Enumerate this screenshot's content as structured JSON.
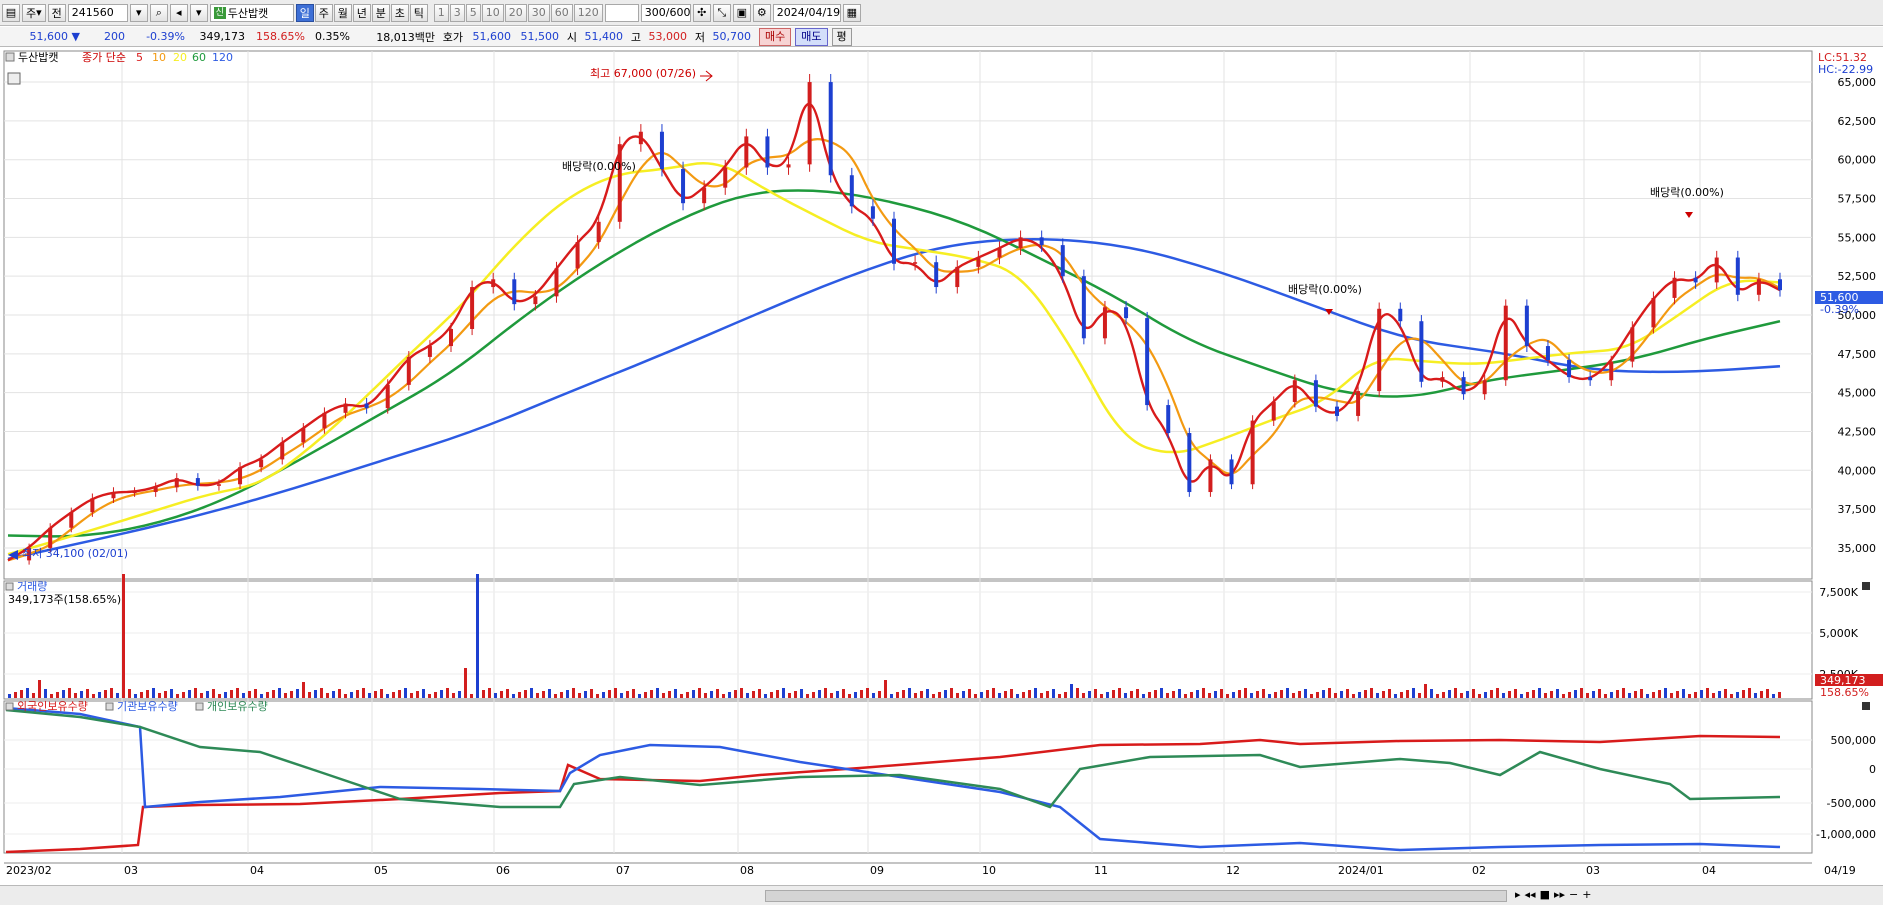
{
  "toolbar": {
    "period_label": "주",
    "mode_label": "전",
    "code": "241560",
    "stock_badge": "신",
    "stock_name": "두산밥캣",
    "timeframes": [
      "일",
      "주",
      "월",
      "년",
      "분",
      "초",
      "틱"
    ],
    "timeframe_selected": "일",
    "intervals": [
      "1",
      "3",
      "5",
      "10",
      "20",
      "30",
      "60",
      "120"
    ],
    "count": "300/600",
    "date": "2024/04/19"
  },
  "infobar": {
    "price": "51,600",
    "change": "200",
    "change_pct": "-0.39%",
    "volume": "349,173",
    "volume_ratio": "158.65%",
    "turnover_pct": "0.35%",
    "trade_value": "18,013백만",
    "quote_label": "호가",
    "ask": "51,600",
    "bid": "51,500",
    "open_label": "시",
    "open": "51,400",
    "high_label": "고",
    "high": "53,000",
    "low_label": "저",
    "low": "50,700",
    "buy_label": "매수",
    "sell_label": "매도",
    "flat_label": "평"
  },
  "price_panel": {
    "stock_label": "두산밥캣",
    "legend_prefix": "종가 단순",
    "ma_labels": [
      "5",
      "10",
      "20",
      "60",
      "120"
    ],
    "ma_colors": [
      "#d81b1b",
      "#f39a12",
      "#f6ee23",
      "#1f9a3c",
      "#2d5be3"
    ],
    "lc_label": "LC:51.32",
    "hc_label": "HC:-22.99",
    "current_price_label": "51,600",
    "current_change_label": "-0.39%",
    "high_annotation": "최고 67,000 (07/26)",
    "low_annotation": "최저 34,100 (02/01)",
    "dividend_annotations": [
      "배당락(0.00%)",
      "배당락(0.00%)",
      "배당락(0.00%)"
    ]
  },
  "volume_panel": {
    "title": "거래량",
    "value_label": "349,173주(158.65%)",
    "current_label": "349,173",
    "current_pct": "158.65%"
  },
  "holdings_panel": {
    "legend": [
      "외국인보유수량",
      "기관보유수량",
      "개인보유수량"
    ],
    "colors": [
      "#d81b1b",
      "#2d5be3",
      "#2e8a57"
    ]
  },
  "chart_data": {
    "type": "line",
    "x_axis_labels": [
      "2023/02",
      "03",
      "04",
      "05",
      "06",
      "07",
      "08",
      "09",
      "10",
      "11",
      "12",
      "2024/01",
      "02",
      "03",
      "04",
      "04/19"
    ],
    "price_ticks": [
      "65,000",
      "62,500",
      "60,000",
      "57,500",
      "55,000",
      "52,500",
      "50,000",
      "47,500",
      "45,000",
      "42,500",
      "40,000",
      "37,500",
      "35,000"
    ],
    "price_ylim": [
      33000,
      67000
    ],
    "close_series": [
      34200,
      35000,
      36300,
      37300,
      38200,
      38600,
      38600,
      38900,
      39500,
      39000,
      39100,
      40200,
      40700,
      41800,
      42700,
      43700,
      44300,
      44000,
      45500,
      47300,
      48000,
      49100,
      51800,
      52300,
      50700,
      51200,
      53000,
      54700,
      56000,
      61000,
      61800,
      59400,
      57200,
      58200,
      59500,
      61500,
      59500,
      59700,
      65000,
      59000,
      57000,
      56200,
      53300,
      53400,
      51800,
      53100,
      53700,
      54300,
      55000,
      54500,
      52500,
      48500,
      50500,
      49800,
      44200,
      42400,
      38600,
      40700,
      39100,
      43200,
      44400,
      45800,
      44100,
      43500,
      45100,
      50400,
      49600,
      45700,
      46000,
      44900,
      45800,
      50600,
      48000,
      47100,
      46000,
      45800,
      47000,
      49200,
      51100,
      52400,
      52100,
      53700,
      51300,
      52300,
      51600
    ],
    "ma_approx": {
      "ma20": [
        34600,
        35500,
        36500,
        37500,
        38500,
        39100,
        41500,
        44500,
        47700,
        50700,
        54500,
        57500,
        59100,
        59400,
        60000,
        58000,
        56300,
        54700,
        54200,
        53700,
        52700,
        48000,
        42000,
        40900,
        42000,
        43300,
        44400,
        47300,
        47000,
        46800,
        47200,
        47600,
        47800,
        50000,
        52300,
        52100
      ],
      "ma60": [
        35800,
        35700,
        36500,
        38200,
        40800,
        43500,
        46200,
        50000,
        53300,
        56000,
        57900,
        58100,
        57300,
        55900,
        53600,
        51200,
        48300,
        46600,
        45000,
        44600,
        45800,
        46400,
        47100,
        48500,
        49600
      ],
      "ma120": [
        34300,
        35600,
        37000,
        38700,
        40600,
        42500,
        45000,
        47400,
        50000,
        52500,
        54500,
        55000,
        54500,
        52800,
        50600,
        48400,
        47600,
        46400,
        46300,
        46700
      ]
    },
    "volume_ticks": [
      "7,500K",
      "5,000K",
      "2,500K"
    ],
    "holdings_ticks": [
      "500,000",
      "0",
      "-500,000",
      "-1,000,000"
    ]
  }
}
